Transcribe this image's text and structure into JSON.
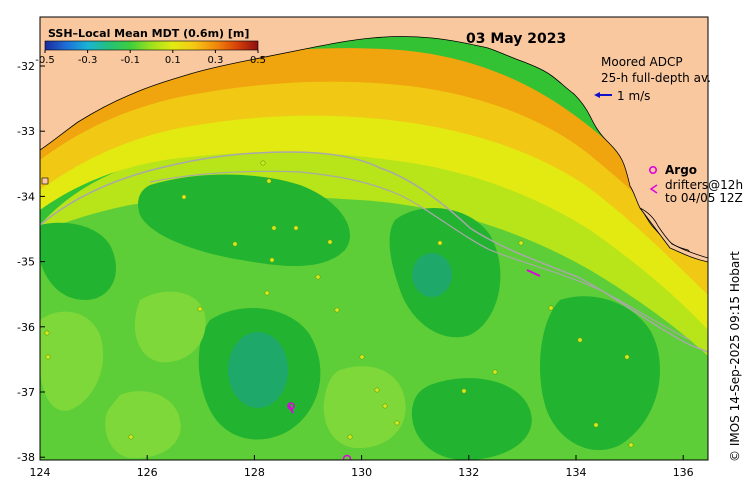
{
  "map": {
    "date": "03 May 2023",
    "colorbar": {
      "title": "SSH–Local Mean MDT (0.6m) [m]",
      "ticks": [
        "-0.5",
        "-0.3",
        "-0.1",
        "0.1",
        "0.3",
        "0.5"
      ],
      "colors": [
        "#1a2a9c",
        "#1e6fd8",
        "#19b3d6",
        "#25c07a",
        "#3dcf3d",
        "#9fe01e",
        "#e3ea12",
        "#f5c814",
        "#f28a0c",
        "#d8420a",
        "#8e0f0f"
      ]
    },
    "lat_ticks": [
      "-32",
      "-33",
      "-34",
      "-35",
      "-36",
      "-37",
      "-38"
    ],
    "lon_ticks": [
      "124",
      "126",
      "128",
      "130",
      "132",
      "134",
      "136"
    ],
    "adcp": {
      "title": "Moored ADCP",
      "subtitle": "25-h full-depth av.",
      "scale_label": "1 m/s",
      "arrow_color": "#1010c8"
    },
    "argo": {
      "label": "Argo",
      "color": "#e000e0"
    },
    "drifters": {
      "line1": "drifters@12h",
      "line2": "to 04/05 12Z",
      "color": "#e000e0"
    },
    "credit": "© IMOS 14-Sep-2025 09:15 Hobart",
    "land_color": "#f9c89f",
    "shelf_contour_color": "#a8a8a8"
  }
}
